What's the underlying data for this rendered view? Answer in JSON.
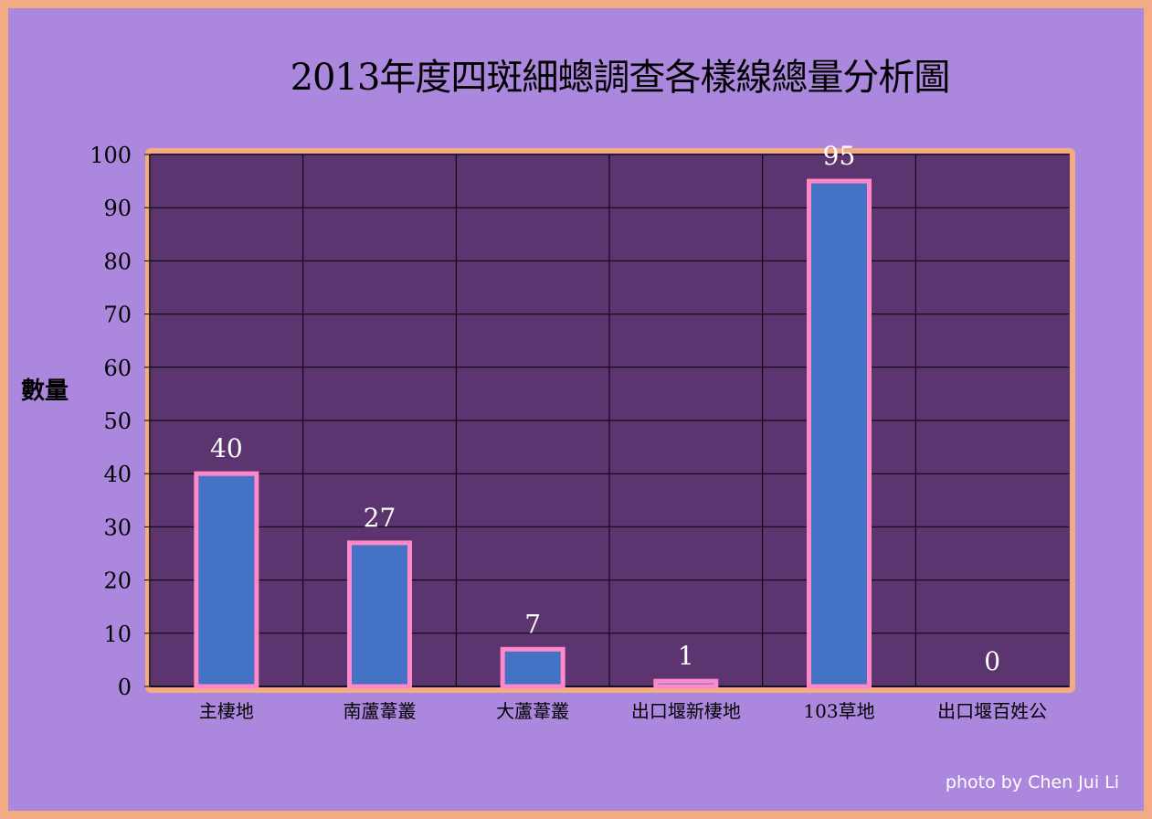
{
  "chart_data": {
    "type": "bar",
    "title": "2013年度四斑細蟌調查各樣線總量分析圖",
    "ylabel": "數量",
    "xlabel": "",
    "categories": [
      "主棲地",
      "南蘆葦叢",
      "大蘆葦叢",
      "出口堰新棲地",
      "103草地",
      "出口堰百姓公"
    ],
    "values": [
      40,
      27,
      7,
      1,
      95,
      0
    ],
    "ylim": [
      0,
      100
    ],
    "yticks": [
      0,
      10,
      20,
      30,
      40,
      50,
      60,
      70,
      80,
      90,
      100
    ],
    "grid": true,
    "data_labels": true
  },
  "credit": "photo by Chen Jui Li",
  "colors": {
    "outer_border": "#f3ab83",
    "background": "#ab88dd",
    "plot_area": "#5c3570",
    "plot_border": "#f3ab83",
    "bar_fill": "#4472c4",
    "bar_outline": "#ff88c8",
    "data_label": "#ffffff"
  }
}
